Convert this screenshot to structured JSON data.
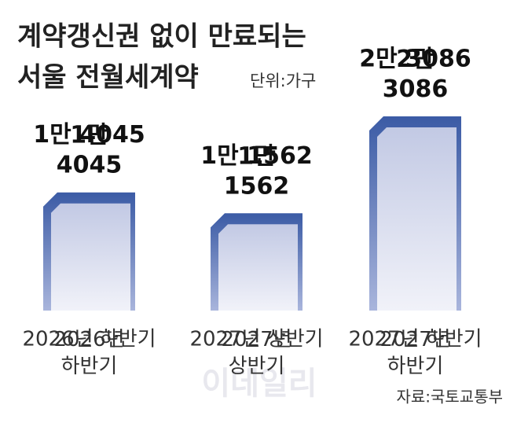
{
  "chart_data": {
    "type": "bar",
    "title": [
      "계약갱신권 없이 만료되는",
      "서울 전월세계약"
    ],
    "unit": "단위:가구",
    "categories": [
      "2026년 하반기",
      "2027년 상반기",
      "2027년 하반기"
    ],
    "values": [
      14045,
      11562,
      23086
    ],
    "value_labels": [
      "1만 4045",
      "1만 1562",
      "2만 3086"
    ],
    "color": "#3b5ba5",
    "source": "자료:국토교통부",
    "watermark": "이데일리"
  }
}
